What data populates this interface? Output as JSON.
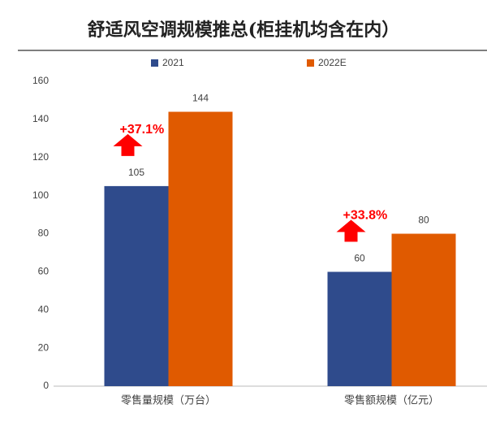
{
  "chart_data": {
    "type": "bar",
    "title": "舒适风空调规模推总(柜挂机均含在内）",
    "categories": [
      "零售量规模（万台）",
      "零售额规模（亿元）"
    ],
    "series": [
      {
        "name": "2021",
        "color": "#2f4b8c",
        "values": [
          105,
          60
        ]
      },
      {
        "name": "2022E",
        "color": "#e05a00",
        "values": [
          144,
          80
        ]
      }
    ],
    "annotations": [
      "+37.1%",
      "+33.8%"
    ],
    "annotation_color": "#ff0000",
    "ylim": [
      0,
      160
    ],
    "yticks": [
      0,
      20,
      40,
      60,
      80,
      100,
      120,
      140,
      160
    ],
    "grid": false,
    "legend": "top"
  }
}
